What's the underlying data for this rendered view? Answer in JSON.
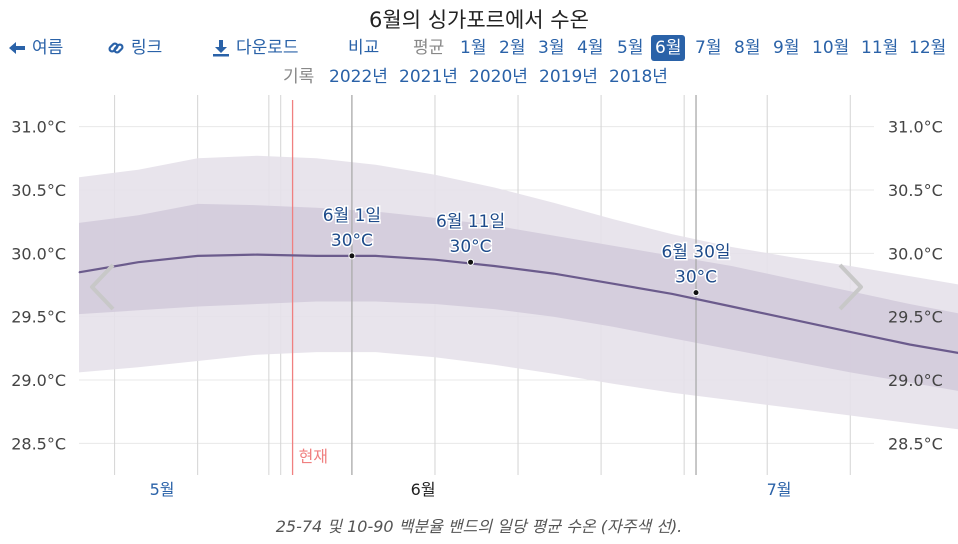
{
  "title": "6월의 싱가포르에서 수온",
  "nav": {
    "back_label": "여름",
    "link_label": "링크",
    "download_label": "다운로드",
    "compare_label": "비교",
    "average_label": "평균",
    "months": [
      "1월",
      "2월",
      "3월",
      "4월",
      "5월",
      "6월",
      "7월",
      "8월",
      "9월",
      "10월",
      "11월",
      "12월"
    ],
    "selected_month": "6월",
    "record_label": "기록",
    "years": [
      "2022년",
      "2021년",
      "2020년",
      "2019년",
      "2018년"
    ]
  },
  "caption": "25-74 및 10-90 백분율 밴드의 일당 평균 수온 (자주색 선).",
  "colors": {
    "accent": "#2a62a8",
    "line": "#6b5b8c",
    "band_outer": "#e6e1ea",
    "band_inner": "#d3cbdb",
    "now_line": "#f08080"
  },
  "chart_data": {
    "type": "area",
    "x_unit": "day",
    "ylim": [
      28.25,
      31.25
    ],
    "y_ticks": [
      31.0,
      30.5,
      30.0,
      29.5,
      29.0,
      28.5
    ],
    "y_tick_labels": [
      "31.0°C",
      "30.5°C",
      "30.0°C",
      "29.5°C",
      "29.0°C",
      "28.5°C"
    ],
    "x_range": [
      "5월 9일",
      "7월 23일"
    ],
    "month_labels": [
      {
        "label": "5월",
        "at": "5월 16일"
      },
      {
        "label": "6월",
        "at": "6월 15일"
      },
      {
        "label": "7월",
        "at": "7월 15일"
      }
    ],
    "now_marker": {
      "label": "현재",
      "at": "5월 27일"
    },
    "week_lines": [
      "5월 12일",
      "5월 19일",
      "5월 26일",
      "6월 2일",
      "6월 9일",
      "6월 16일",
      "6월 23일",
      "6월 30일",
      "7월 7일",
      "7월 14일",
      "7월 21일"
    ],
    "series": [
      {
        "x": [
          0,
          5,
          10,
          15,
          20,
          25,
          30,
          35,
          40,
          45,
          50,
          55,
          60,
          65,
          70,
          75
        ],
        "values": [
          29.85,
          29.93,
          29.98,
          29.99,
          29.98,
          29.98,
          29.95,
          29.9,
          29.84,
          29.76,
          29.68,
          29.58,
          29.48,
          29.38,
          29.28,
          29.2
        ]
      }
    ],
    "band_25_75": {
      "x": [
        0,
        5,
        10,
        15,
        20,
        25,
        30,
        35,
        40,
        45,
        50,
        55,
        60,
        65,
        70,
        75
      ],
      "low": [
        29.52,
        29.55,
        29.58,
        29.6,
        29.62,
        29.62,
        29.6,
        29.56,
        29.5,
        29.42,
        29.33,
        29.24,
        29.15,
        29.06,
        28.98,
        28.9
      ],
      "high": [
        30.24,
        30.3,
        30.39,
        30.38,
        30.36,
        30.33,
        30.28,
        30.22,
        30.14,
        30.06,
        29.98,
        29.9,
        29.8,
        29.7,
        29.6,
        29.51
      ]
    },
    "band_10_90": {
      "x": [
        0,
        5,
        10,
        15,
        20,
        25,
        30,
        35,
        40,
        45,
        50,
        55,
        60,
        65,
        70,
        75
      ],
      "low": [
        29.06,
        29.1,
        29.15,
        29.2,
        29.22,
        29.22,
        29.18,
        29.12,
        29.05,
        28.97,
        28.9,
        28.84,
        28.78,
        28.72,
        28.66,
        28.6
      ],
      "high": [
        30.6,
        30.66,
        30.75,
        30.77,
        30.75,
        30.7,
        30.62,
        30.52,
        30.4,
        30.27,
        30.15,
        30.05,
        29.97,
        29.9,
        29.82,
        29.74
      ]
    },
    "annotations": [
      {
        "date": "6월 1일",
        "value": "30°C",
        "x": 23,
        "y": 29.98,
        "cursor": true
      },
      {
        "date": "6월 11일",
        "value": "30°C",
        "x": 33,
        "y": 29.93,
        "cursor": false
      },
      {
        "date": "6월 30일",
        "value": "30°C",
        "x": 52,
        "y": 29.69,
        "cursor": true
      }
    ]
  }
}
